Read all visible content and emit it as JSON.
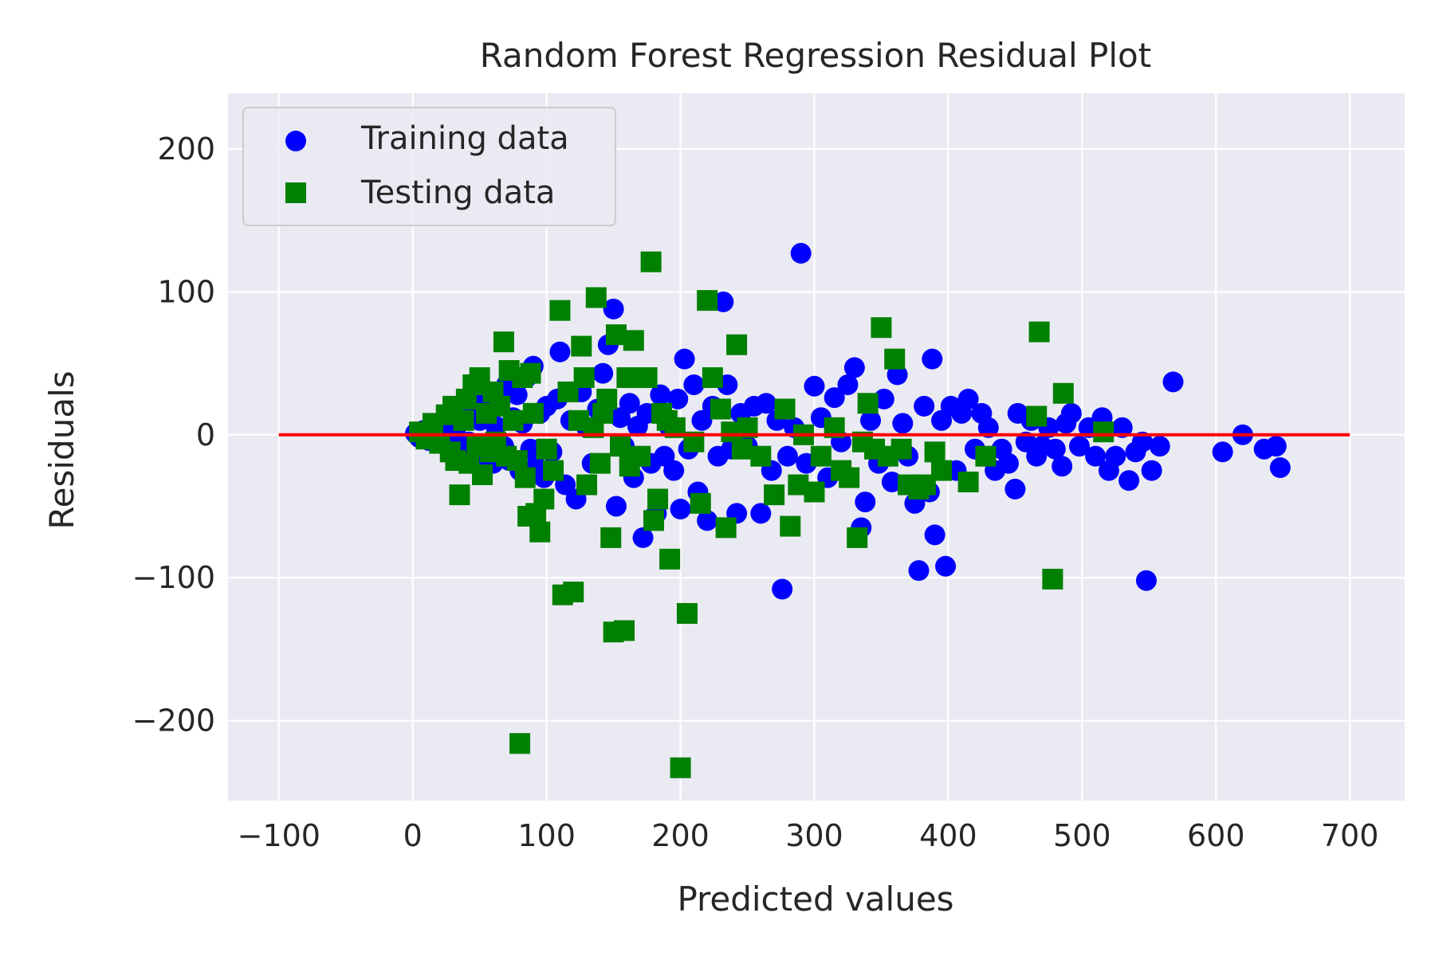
{
  "chart_data": {
    "type": "scatter",
    "title": "Random Forest Regression Residual Plot",
    "xlabel": "Predicted values",
    "ylabel": "Residuals",
    "xlim": [
      -138,
      741
    ],
    "ylim": [
      -256,
      239
    ],
    "xticks": [
      -100,
      0,
      100,
      200,
      300,
      400,
      500,
      600,
      700
    ],
    "xtick_labels": [
      "−100",
      "0",
      "100",
      "200",
      "300",
      "400",
      "500",
      "600",
      "700"
    ],
    "yticks": [
      -200,
      -100,
      0,
      100,
      200
    ],
    "ytick_labels": [
      "−200",
      "−100",
      "0",
      "100",
      "200"
    ],
    "grid": true,
    "legend_position": "top-left",
    "hline": {
      "y": 0,
      "x_from": -100,
      "x_to": 700,
      "color": "#ff0000"
    },
    "series": [
      {
        "name": "Training data",
        "marker": "circle",
        "color": "#0000ff",
        "points": [
          [
            2,
            1
          ],
          [
            5,
            -2
          ],
          [
            8,
            3
          ],
          [
            10,
            0
          ],
          [
            12,
            -4
          ],
          [
            15,
            5
          ],
          [
            18,
            2
          ],
          [
            20,
            -6
          ],
          [
            22,
            8
          ],
          [
            25,
            -3
          ],
          [
            28,
            12
          ],
          [
            30,
            -8
          ],
          [
            32,
            4
          ],
          [
            35,
            15
          ],
          [
            38,
            -10
          ],
          [
            40,
            20
          ],
          [
            42,
            -5
          ],
          [
            45,
            25
          ],
          [
            48,
            -12
          ],
          [
            50,
            10
          ],
          [
            52,
            30
          ],
          [
            55,
            -15
          ],
          [
            58,
            18
          ],
          [
            60,
            -20
          ],
          [
            62,
            6
          ],
          [
            65,
            22
          ],
          [
            68,
            -8
          ],
          [
            70,
            35
          ],
          [
            72,
            -18
          ],
          [
            75,
            12
          ],
          [
            78,
            28
          ],
          [
            80,
            -25
          ],
          [
            82,
            8
          ],
          [
            85,
            40
          ],
          [
            88,
            -10
          ],
          [
            90,
            48
          ],
          [
            92,
            -22
          ],
          [
            95,
            15
          ],
          [
            98,
            -30
          ],
          [
            100,
            20
          ],
          [
            104,
            -12
          ],
          [
            108,
            25
          ],
          [
            110,
            58
          ],
          [
            114,
            -35
          ],
          [
            118,
            10
          ],
          [
            122,
            -45
          ],
          [
            126,
            30
          ],
          [
            130,
            5
          ],
          [
            134,
            -20
          ],
          [
            138,
            18
          ],
          [
            142,
            43
          ],
          [
            146,
            63
          ],
          [
            150,
            88
          ],
          [
            152,
            -50
          ],
          [
            155,
            12
          ],
          [
            158,
            -8
          ],
          [
            162,
            22
          ],
          [
            165,
            -30
          ],
          [
            168,
            6
          ],
          [
            172,
            -72
          ],
          [
            175,
            15
          ],
          [
            178,
            -20
          ],
          [
            182,
            -55
          ],
          [
            185,
            28
          ],
          [
            188,
            -15
          ],
          [
            192,
            5
          ],
          [
            195,
            -25
          ],
          [
            198,
            25
          ],
          [
            200,
            -52
          ],
          [
            203,
            53
          ],
          [
            206,
            -10
          ],
          [
            210,
            35
          ],
          [
            213,
            -40
          ],
          [
            216,
            10
          ],
          [
            220,
            -60
          ],
          [
            224,
            20
          ],
          [
            228,
            -15
          ],
          [
            232,
            93
          ],
          [
            235,
            35
          ],
          [
            238,
            -10
          ],
          [
            242,
            -55
          ],
          [
            245,
            15
          ],
          [
            250,
            -8
          ],
          [
            255,
            20
          ],
          [
            260,
            -55
          ],
          [
            264,
            22
          ],
          [
            268,
            -25
          ],
          [
            272,
            10
          ],
          [
            276,
            -108
          ],
          [
            280,
            -15
          ],
          [
            285,
            5
          ],
          [
            290,
            127
          ],
          [
            294,
            -20
          ],
          [
            300,
            34
          ],
          [
            305,
            12
          ],
          [
            310,
            -30
          ],
          [
            315,
            26
          ],
          [
            320,
            -5
          ],
          [
            325,
            35
          ],
          [
            330,
            47
          ],
          [
            335,
            -65
          ],
          [
            338,
            -47
          ],
          [
            342,
            10
          ],
          [
            348,
            -20
          ],
          [
            352,
            25
          ],
          [
            358,
            -33
          ],
          [
            362,
            42
          ],
          [
            366,
            8
          ],
          [
            370,
            -15
          ],
          [
            375,
            -48
          ],
          [
            378,
            -95
          ],
          [
            382,
            20
          ],
          [
            386,
            -40
          ],
          [
            388,
            53
          ],
          [
            390,
            -70
          ],
          [
            395,
            10
          ],
          [
            398,
            -92
          ],
          [
            402,
            20
          ],
          [
            406,
            -25
          ],
          [
            410,
            15
          ],
          [
            415,
            25
          ],
          [
            420,
            -10
          ],
          [
            425,
            15
          ],
          [
            430,
            5
          ],
          [
            435,
            -25
          ],
          [
            440,
            -10
          ],
          [
            445,
            -20
          ],
          [
            450,
            -38
          ],
          [
            452,
            15
          ],
          [
            458,
            -5
          ],
          [
            462,
            10
          ],
          [
            466,
            -15
          ],
          [
            470,
            -8
          ],
          [
            475,
            5
          ],
          [
            480,
            -10
          ],
          [
            485,
            -22
          ],
          [
            488,
            8
          ],
          [
            492,
            15
          ],
          [
            498,
            -8
          ],
          [
            505,
            5
          ],
          [
            510,
            -15
          ],
          [
            515,
            12
          ],
          [
            520,
            -25
          ],
          [
            525,
            -15
          ],
          [
            530,
            5
          ],
          [
            535,
            -32
          ],
          [
            540,
            -12
          ],
          [
            545,
            -5
          ],
          [
            548,
            -102
          ],
          [
            552,
            -25
          ],
          [
            558,
            -8
          ],
          [
            568,
            37
          ],
          [
            605,
            -12
          ],
          [
            620,
            0
          ],
          [
            636,
            -10
          ],
          [
            645,
            -8
          ],
          [
            648,
            -23
          ]
        ]
      },
      {
        "name": "Testing data",
        "marker": "square",
        "color": "#008000",
        "points": [
          [
            5,
            2
          ],
          [
            10,
            -3
          ],
          [
            15,
            8
          ],
          [
            20,
            -6
          ],
          [
            25,
            14
          ],
          [
            28,
            -12
          ],
          [
            30,
            20
          ],
          [
            32,
            -18
          ],
          [
            35,
            -42
          ],
          [
            38,
            10
          ],
          [
            40,
            25
          ],
          [
            42,
            -20
          ],
          [
            45,
            35
          ],
          [
            48,
            -8
          ],
          [
            50,
            40
          ],
          [
            52,
            -28
          ],
          [
            55,
            15
          ],
          [
            58,
            -12
          ],
          [
            60,
            30
          ],
          [
            62,
            -5
          ],
          [
            65,
            20
          ],
          [
            68,
            65
          ],
          [
            70,
            -15
          ],
          [
            72,
            45
          ],
          [
            75,
            10
          ],
          [
            78,
            -18
          ],
          [
            80,
            -216
          ],
          [
            82,
            40
          ],
          [
            84,
            -30
          ],
          [
            86,
            -57
          ],
          [
            88,
            43
          ],
          [
            90,
            15
          ],
          [
            92,
            -55
          ],
          [
            95,
            -68
          ],
          [
            98,
            -45
          ],
          [
            100,
            -10
          ],
          [
            105,
            -25
          ],
          [
            110,
            87
          ],
          [
            112,
            -112
          ],
          [
            116,
            30
          ],
          [
            120,
            -110
          ],
          [
            124,
            10
          ],
          [
            126,
            62
          ],
          [
            128,
            40
          ],
          [
            130,
            -35
          ],
          [
            135,
            5
          ],
          [
            137,
            96
          ],
          [
            140,
            -20
          ],
          [
            142,
            15
          ],
          [
            145,
            25
          ],
          [
            148,
            -72
          ],
          [
            150,
            -138
          ],
          [
            152,
            70
          ],
          [
            155,
            -8
          ],
          [
            158,
            -137
          ],
          [
            160,
            40
          ],
          [
            162,
            -22
          ],
          [
            165,
            66
          ],
          [
            170,
            -15
          ],
          [
            175,
            40
          ],
          [
            178,
            121
          ],
          [
            180,
            -60
          ],
          [
            183,
            -45
          ],
          [
            186,
            15
          ],
          [
            190,
            10
          ],
          [
            192,
            -87
          ],
          [
            196,
            5
          ],
          [
            200,
            -233
          ],
          [
            205,
            -125
          ],
          [
            210,
            -5
          ],
          [
            215,
            -48
          ],
          [
            220,
            94
          ],
          [
            224,
            40
          ],
          [
            230,
            18
          ],
          [
            234,
            -65
          ],
          [
            238,
            2
          ],
          [
            242,
            63
          ],
          [
            246,
            -10
          ],
          [
            250,
            5
          ],
          [
            260,
            -15
          ],
          [
            270,
            -42
          ],
          [
            278,
            18
          ],
          [
            282,
            -64
          ],
          [
            288,
            -35
          ],
          [
            292,
            0
          ],
          [
            300,
            -40
          ],
          [
            305,
            -15
          ],
          [
            315,
            5
          ],
          [
            320,
            -25
          ],
          [
            326,
            -30
          ],
          [
            332,
            -72
          ],
          [
            336,
            -5
          ],
          [
            340,
            22
          ],
          [
            345,
            -10
          ],
          [
            350,
            75
          ],
          [
            355,
            -15
          ],
          [
            360,
            53
          ],
          [
            365,
            -10
          ],
          [
            370,
            -35
          ],
          [
            378,
            -38
          ],
          [
            383,
            -35
          ],
          [
            390,
            -12
          ],
          [
            395,
            -25
          ],
          [
            415,
            -33
          ],
          [
            428,
            -15
          ],
          [
            466,
            13
          ],
          [
            468,
            72
          ],
          [
            478,
            -101
          ],
          [
            486,
            29
          ],
          [
            516,
            2
          ]
        ]
      }
    ]
  }
}
